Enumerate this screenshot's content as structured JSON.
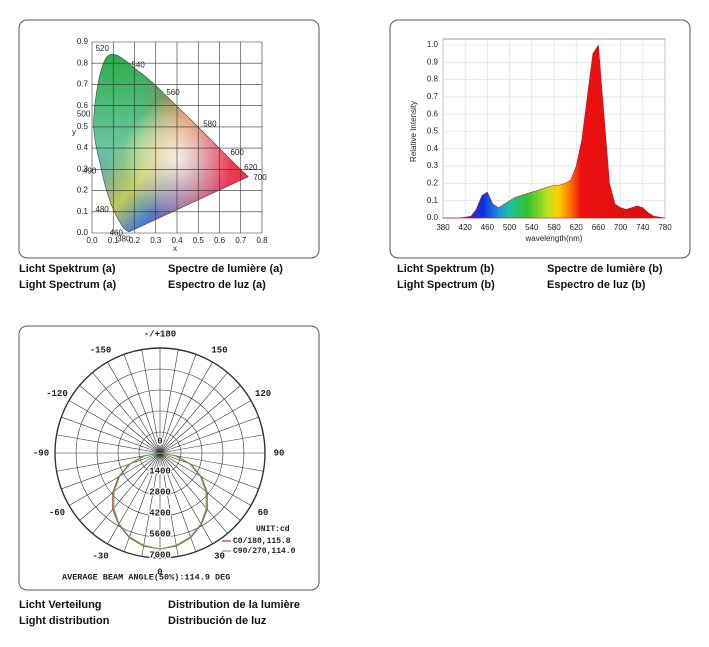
{
  "chart_data": [
    {
      "type": "cie",
      "xlabel": "x",
      "ylabel": "y",
      "xlim": [
        0,
        0.8
      ],
      "ylim": [
        0,
        0.9
      ],
      "xticks": [
        {
          "value": 0,
          "label": "0.0"
        },
        0.1,
        0.2,
        0.3,
        0.4,
        0.5,
        0.6,
        0.7,
        0.8
      ],
      "yticks": [
        {
          "value": 0,
          "label": "0.0"
        },
        0.1,
        0.2,
        0.3,
        0.4,
        0.5,
        0.6,
        0.7,
        0.8,
        0.9
      ],
      "grid": true,
      "locus": [
        {
          "label": "380",
          "x": 0.174,
          "y": 0.005
        },
        {
          "label": "460",
          "x": 0.144,
          "y": 0.03
        },
        {
          "label": "480",
          "x": 0.091,
          "y": 0.133
        },
        {
          "label": "490",
          "x": 0.045,
          "y": 0.295
        },
        {
          "label": "500",
          "x": 0.008,
          "y": 0.538
        },
        {
          "label": "520",
          "x": 0.074,
          "y": 0.834
        },
        {
          "label": "540",
          "x": 0.23,
          "y": 0.754
        },
        {
          "label": "560",
          "x": 0.373,
          "y": 0.624
        },
        {
          "label": "580",
          "x": 0.512,
          "y": 0.487
        },
        {
          "label": "600",
          "x": 0.627,
          "y": 0.372
        },
        {
          "label": "620",
          "x": 0.691,
          "y": 0.308
        },
        {
          "label": "700",
          "x": 0.735,
          "y": 0.265
        }
      ],
      "captions": [
        [
          "Licht Spektrum (a)",
          "Spectre de lumière (a)"
        ],
        [
          "Light Spectrum (a)",
          "Espectro de luz (a)"
        ]
      ]
    },
    {
      "type": "area",
      "xlabel": "wavelength(nm)",
      "ylabel": "Relative Intensity",
      "xlim": [
        380,
        780
      ],
      "ylim": [
        0,
        1
      ],
      "xticks": [
        380,
        420,
        460,
        500,
        540,
        580,
        620,
        660,
        700,
        740,
        780
      ],
      "yticks": [
        {
          "value": 0,
          "label": "0.0"
        },
        0.1,
        0.2,
        0.3,
        0.4,
        0.5,
        0.6,
        0.7,
        0.8,
        0.9,
        {
          "value": 1,
          "label": "1.0"
        }
      ],
      "grid": true,
      "x": [
        380,
        390,
        400,
        410,
        420,
        430,
        440,
        450,
        460,
        470,
        480,
        490,
        500,
        510,
        520,
        530,
        540,
        550,
        560,
        570,
        580,
        590,
        600,
        610,
        620,
        630,
        640,
        650,
        660,
        670,
        680,
        690,
        700,
        710,
        720,
        730,
        740,
        750,
        760,
        770,
        780
      ],
      "values": [
        0,
        0,
        0,
        0,
        0.005,
        0.01,
        0.05,
        0.13,
        0.15,
        0.08,
        0.06,
        0.08,
        0.1,
        0.12,
        0.13,
        0.14,
        0.15,
        0.16,
        0.17,
        0.18,
        0.19,
        0.19,
        0.2,
        0.22,
        0.3,
        0.45,
        0.7,
        0.95,
        1.0,
        0.6,
        0.2,
        0.08,
        0.06,
        0.05,
        0.06,
        0.07,
        0.06,
        0.03,
        0.01,
        0.005,
        0
      ],
      "captions": [
        [
          "Licht Spektrum (b)",
          "Spectre de lumière (b)"
        ],
        [
          "Light Spectrum (b)",
          "Espectro de luz (b)"
        ]
      ]
    },
    {
      "type": "polar",
      "rlim": [
        0,
        7000
      ],
      "rticks": [
        0,
        1400,
        2800,
        4200,
        5600,
        7000
      ],
      "angle_ticks": [
        {
          "value": 180,
          "label": "-/+180"
        },
        150,
        120,
        90,
        60,
        30,
        0,
        -30,
        -60,
        -90,
        -120,
        -150
      ],
      "angles": [
        -90,
        -80,
        -70,
        -60,
        -50,
        -40,
        -30,
        -20,
        -10,
        0,
        10,
        20,
        30,
        40,
        50,
        60,
        70,
        80,
        90
      ],
      "series": [
        {
          "name": "C0/180,115.8",
          "color": "#b03a3a",
          "values": [
            0,
            1100,
            2200,
            3200,
            4100,
            4900,
            5500,
            6000,
            6300,
            6400,
            6300,
            6000,
            5500,
            4900,
            4100,
            3200,
            2200,
            1100,
            0
          ]
        },
        {
          "name": "C90/270,114.0",
          "color": "#5cb85c",
          "values": [
            0,
            1000,
            2100,
            3100,
            4000,
            4800,
            5450,
            5950,
            6250,
            6400,
            6250,
            5950,
            5450,
            4800,
            4000,
            3100,
            2100,
            1000,
            0
          ]
        }
      ],
      "annotations": [
        "UNIT:cd",
        "AVERAGE BEAM ANGLE(50%):114.9 DEG"
      ],
      "captions": [
        [
          "Licht Verteilung",
          "Distribution de la lumière"
        ],
        [
          "Light distribution",
          "Distribución de luz"
        ]
      ]
    }
  ]
}
